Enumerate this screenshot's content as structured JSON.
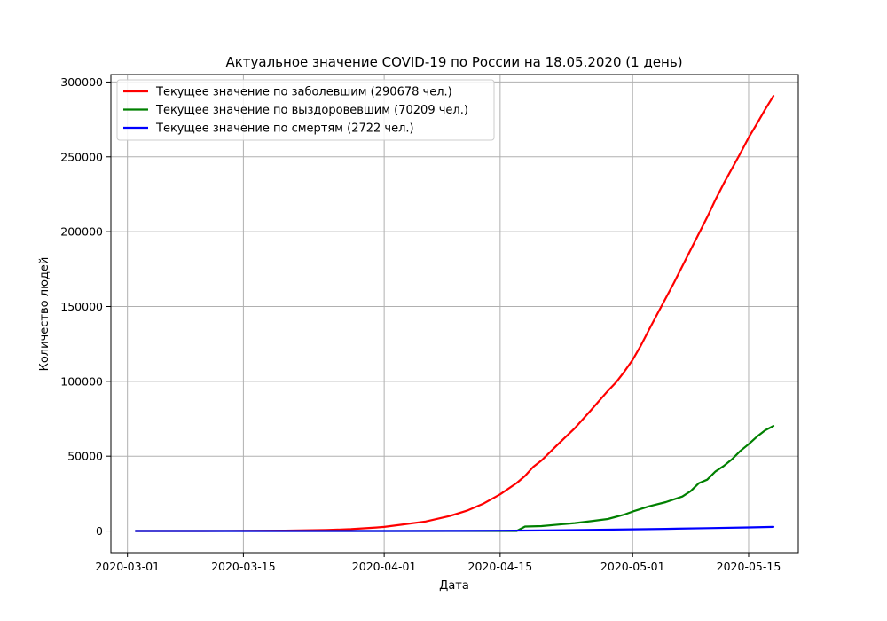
{
  "chart_data": {
    "type": "line",
    "title": "Актуальное значение COVID-19 по России на 18.05.2020 (1 день)",
    "xlabel": "Дата",
    "ylabel": "Количество людей",
    "grid": true,
    "legend_position": "top-left",
    "xlim": [
      "2020-02-28",
      "2020-05-21"
    ],
    "ylim": [
      -14500,
      305000
    ],
    "xticks": [
      "2020-03-01",
      "2020-03-15",
      "2020-04-01",
      "2020-04-15",
      "2020-05-01",
      "2020-05-15"
    ],
    "yticks": [
      0,
      50000,
      100000,
      150000,
      200000,
      250000,
      300000
    ],
    "ytick_labels": [
      "0",
      "50000",
      "100000",
      "150000",
      "200000",
      "250000",
      "300000"
    ],
    "series": [
      {
        "name": "Текущее значение по заболевшим (290678 чел.)",
        "color": "#ff0000",
        "points": [
          [
            "2020-03-02",
            3
          ],
          [
            "2020-03-10",
            10
          ],
          [
            "2020-03-15",
            63
          ],
          [
            "2020-03-20",
            253
          ],
          [
            "2020-03-25",
            658
          ],
          [
            "2020-03-28",
            1264
          ],
          [
            "2020-03-31",
            2337
          ],
          [
            "2020-04-01",
            2777
          ],
          [
            "2020-04-03",
            4149
          ],
          [
            "2020-04-06",
            6343
          ],
          [
            "2020-04-09",
            10131
          ],
          [
            "2020-04-11",
            13584
          ],
          [
            "2020-04-13",
            18328
          ],
          [
            "2020-04-15",
            24490
          ],
          [
            "2020-04-17",
            32008
          ],
          [
            "2020-04-18",
            36793
          ],
          [
            "2020-04-19",
            42853
          ],
          [
            "2020-04-20",
            47121
          ],
          [
            "2020-04-22",
            57999
          ],
          [
            "2020-04-24",
            68622
          ],
          [
            "2020-04-26",
            80949
          ],
          [
            "2020-04-28",
            93558
          ],
          [
            "2020-04-29",
            99399
          ],
          [
            "2020-04-30",
            106498
          ],
          [
            "2020-05-01",
            114431
          ],
          [
            "2020-05-02",
            124054
          ],
          [
            "2020-05-03",
            134687
          ],
          [
            "2020-05-04",
            145268
          ],
          [
            "2020-05-06",
            165929
          ],
          [
            "2020-05-08",
            187859
          ],
          [
            "2020-05-10",
            209688
          ],
          [
            "2020-05-11",
            221344
          ],
          [
            "2020-05-12",
            232243
          ],
          [
            "2020-05-14",
            252245
          ],
          [
            "2020-05-15",
            262843
          ],
          [
            "2020-05-16",
            272043
          ],
          [
            "2020-05-17",
            281752
          ],
          [
            "2020-05-18",
            290678
          ]
        ]
      },
      {
        "name": "Текущее значение по выздоровевшим (70209 чел.)",
        "color": "#008000",
        "points": [
          [
            "2020-03-02",
            0
          ],
          [
            "2020-04-17",
            0
          ],
          [
            "2020-04-18",
            3000
          ],
          [
            "2020-04-20",
            3300
          ],
          [
            "2020-04-22",
            4300
          ],
          [
            "2020-04-24",
            5300
          ],
          [
            "2020-04-26",
            6600
          ],
          [
            "2020-04-28",
            8000
          ],
          [
            "2020-04-29",
            9500
          ],
          [
            "2020-04-30",
            11000
          ],
          [
            "2020-05-01",
            13000
          ],
          [
            "2020-05-03",
            16500
          ],
          [
            "2020-05-05",
            19300
          ],
          [
            "2020-05-07",
            23000
          ],
          [
            "2020-05-08",
            26600
          ],
          [
            "2020-05-09",
            32000
          ],
          [
            "2020-05-10",
            34300
          ],
          [
            "2020-05-11",
            39800
          ],
          [
            "2020-05-12",
            43500
          ],
          [
            "2020-05-13",
            48000
          ],
          [
            "2020-05-14",
            53500
          ],
          [
            "2020-05-15",
            58000
          ],
          [
            "2020-05-16",
            63000
          ],
          [
            "2020-05-17",
            67300
          ],
          [
            "2020-05-18",
            70209
          ]
        ]
      },
      {
        "name": "Текущее значение по смертям (2722 чел.)",
        "color": "#0000ff",
        "points": [
          [
            "2020-03-02",
            0
          ],
          [
            "2020-03-25",
            2
          ],
          [
            "2020-04-01",
            24
          ],
          [
            "2020-04-10",
            106
          ],
          [
            "2020-04-15",
            198
          ],
          [
            "2020-04-20",
            405
          ],
          [
            "2020-04-25",
            747
          ],
          [
            "2020-05-01",
            1169
          ],
          [
            "2020-05-05",
            1451
          ],
          [
            "2020-05-10",
            1915
          ],
          [
            "2020-05-15",
            2418
          ],
          [
            "2020-05-18",
            2722
          ]
        ]
      }
    ]
  }
}
